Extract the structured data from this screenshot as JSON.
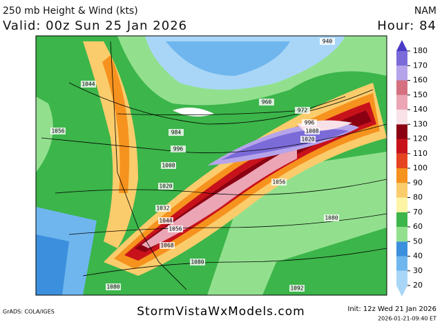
{
  "header": {
    "title": "250 mb Height & Wind (kts)",
    "valid": "Valid: 00z Sun 25 Jan 2026",
    "model": "NAM",
    "hour": "Hour: 84"
  },
  "legend": {
    "levels": [
      20,
      30,
      40,
      50,
      60,
      70,
      80,
      90,
      100,
      110,
      120,
      130,
      140,
      150,
      160,
      170,
      180
    ],
    "colors": [
      "#a9d6f7",
      "#6fb6ee",
      "#3c8fdc",
      "#92e08e",
      "#3cb54a",
      "#fdf4a6",
      "#fbcc6c",
      "#f6921e",
      "#e64420",
      "#c8121b",
      "#8a0012",
      "#f8e2e8",
      "#eba5b5",
      "#d4707f",
      "#b6a4ea",
      "#7b6bd8",
      "#4a3bc6"
    ]
  },
  "contours": [
    "940",
    "1044",
    "1056",
    "960",
    "972",
    "984",
    "996",
    "1008",
    "1020",
    "1032",
    "1044",
    "1056",
    "1068",
    "1080",
    "1080",
    "1092",
    "1056",
    "1080",
    "996",
    "1008",
    "1020"
  ],
  "footer": {
    "credit": "GrADS: COLA/IGES",
    "site": "StormVistaWxModels.com",
    "init": "Init: 12z Wed 21 Jan 2026",
    "stamp": "2026-01-21-09:40 ET"
  }
}
